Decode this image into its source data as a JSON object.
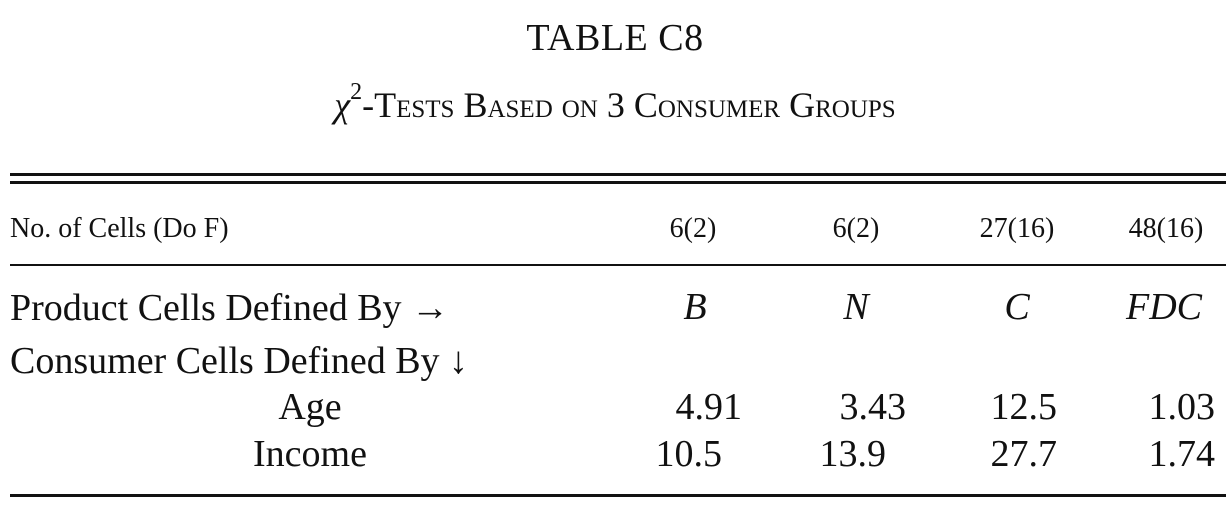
{
  "table": {
    "title": "TABLE C8",
    "subtitle_symbol": "χ",
    "subtitle_superscript": "2",
    "subtitle_text": "-Tests Based on 3 Consumer Groups",
    "header_label": "No. of Cells (Do F)",
    "columns": [
      {
        "cells_dof": "6(2)",
        "product_code": "B"
      },
      {
        "cells_dof": "6(2)",
        "product_code": "N"
      },
      {
        "cells_dof": "27(16)",
        "product_code": "C"
      },
      {
        "cells_dof": "48(16)",
        "product_code": "FDC"
      }
    ],
    "product_row_label": "Product Cells Defined By →",
    "consumer_row_label": "Consumer Cells Defined By ↓",
    "rows": [
      {
        "label": "Age",
        "values": [
          "4.91",
          "3.43",
          "12.5",
          "1.03"
        ]
      },
      {
        "label": "Income",
        "values": [
          "10.5",
          "13.9",
          "27.7",
          "1.74"
        ]
      }
    ]
  }
}
